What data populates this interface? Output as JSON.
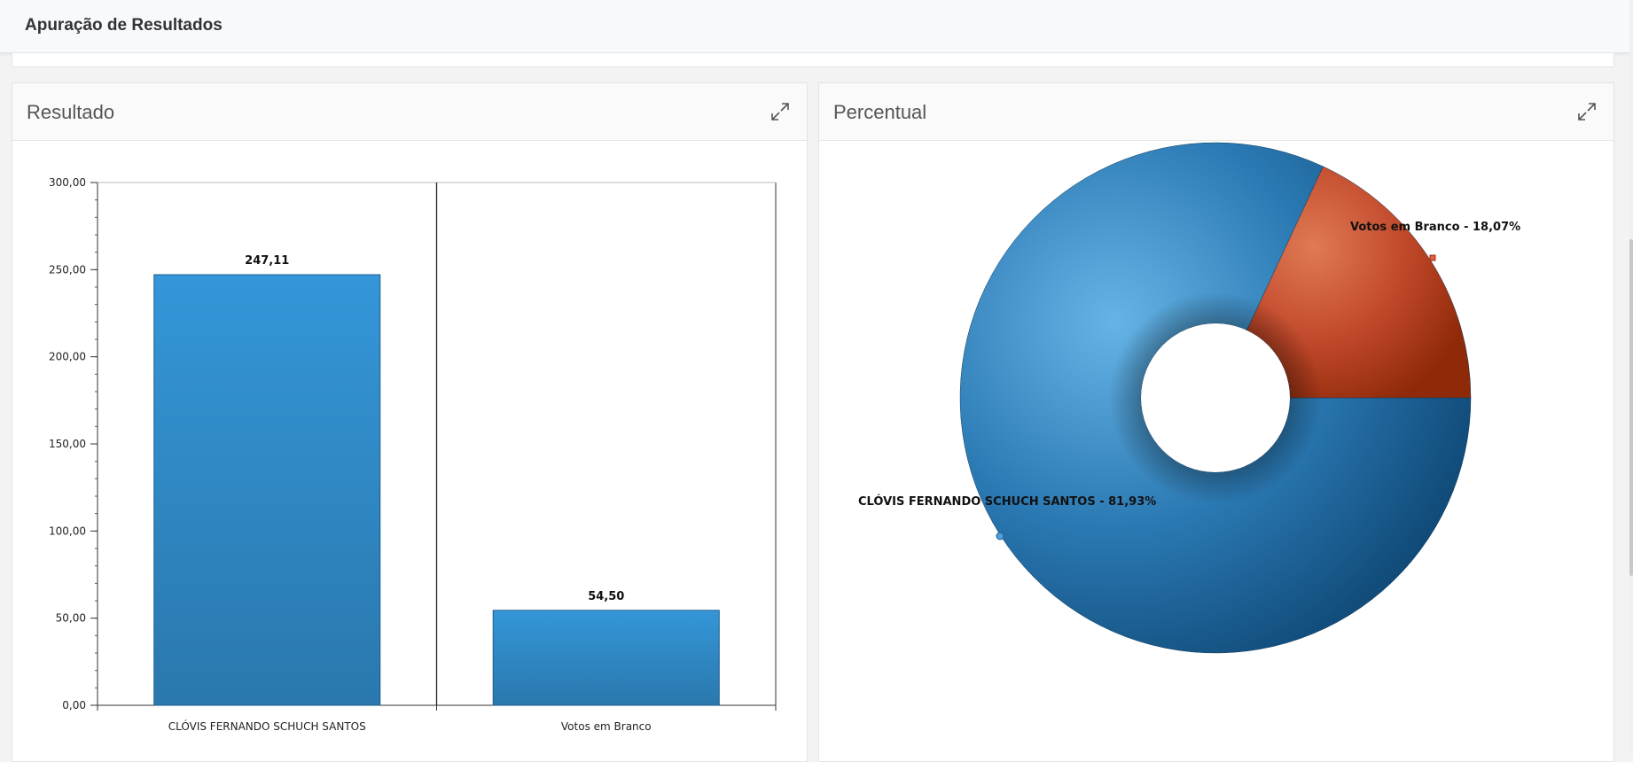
{
  "header": {
    "title": "Apuração de Resultados"
  },
  "panels": {
    "left": {
      "title": "Resultado",
      "expand_icon": "expand-icon"
    },
    "right": {
      "title": "Percentual",
      "expand_icon": "expand-icon"
    }
  },
  "chart_data": [
    {
      "type": "bar",
      "categories": [
        "CLÓVIS FERNANDO SCHUCH SANTOS",
        "Votos em Branco"
      ],
      "values": [
        247.11,
        54.5
      ],
      "data_labels": [
        "247,11",
        "54,50"
      ],
      "ylim": [
        0,
        300
      ],
      "yticks": [
        "0,00",
        "50,00",
        "100,00",
        "150,00",
        "200,00",
        "250,00",
        "300,00"
      ],
      "ytick_values": [
        0,
        50,
        100,
        150,
        200,
        250,
        300
      ],
      "colors": [
        "#3a8fd0"
      ]
    },
    {
      "type": "pie",
      "donut": true,
      "slices": [
        {
          "label": "CLÓVIS FERNANDO SCHUCH SANTOS - 81,93%",
          "value": 81.93,
          "color": "#2d7ab8"
        },
        {
          "label": "Votos em Branco - 18,07%",
          "value": 18.07,
          "color": "#c0482a"
        }
      ]
    }
  ]
}
